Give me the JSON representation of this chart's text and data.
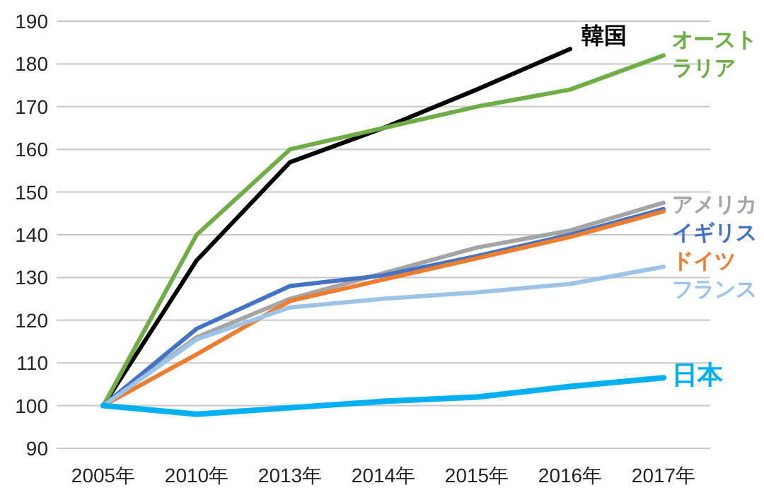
{
  "chart_data": {
    "type": "line",
    "categories": [
      "2005年",
      "2010年",
      "2013年",
      "2014年",
      "2015年",
      "2016年",
      "2017年"
    ],
    "series": [
      {
        "name": "韓国",
        "color": "#000000",
        "values": [
          100,
          134,
          157,
          165,
          174,
          183.5,
          null
        ]
      },
      {
        "name": "オーストラリア",
        "color": "#70ad47",
        "values": [
          100,
          140,
          160,
          165,
          170,
          174,
          182
        ]
      },
      {
        "name": "アメリカ",
        "color": "#a5a5a5",
        "values": [
          100,
          116,
          125,
          131,
          137,
          141,
          147.5
        ]
      },
      {
        "name": "イギリス",
        "color": "#4472c4",
        "values": [
          100,
          118,
          128,
          130.5,
          135,
          140,
          146
        ]
      },
      {
        "name": "ドイツ",
        "color": "#ed7d31",
        "values": [
          100,
          112,
          124.5,
          129.5,
          134.5,
          139.5,
          145.5
        ]
      },
      {
        "name": "フランス",
        "color": "#9dc3e6",
        "values": [
          100,
          115.5,
          123,
          125,
          126.5,
          128.5,
          132.5
        ]
      },
      {
        "name": "日本",
        "color": "#00b0f0",
        "values": [
          100,
          98,
          99.5,
          101,
          102,
          104.5,
          106.5
        ]
      }
    ],
    "ylim": [
      90,
      190
    ],
    "yticks": [
      90,
      100,
      110,
      120,
      130,
      140,
      150,
      160,
      170,
      180,
      190
    ],
    "grid": "y",
    "marker": "none",
    "line_style": "solid"
  }
}
